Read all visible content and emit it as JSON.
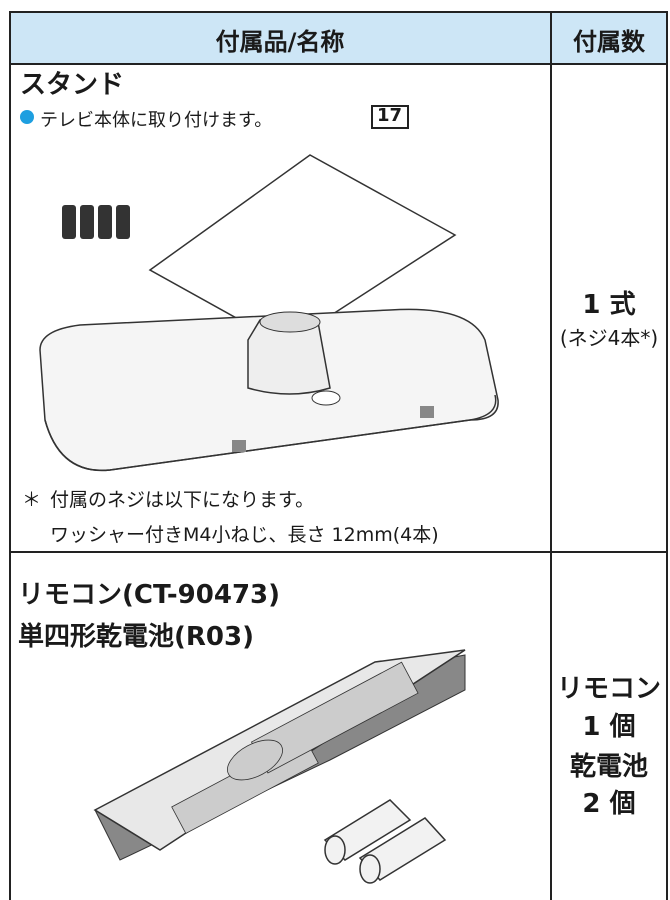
{
  "table": {
    "header": [
      "付属品/名称",
      "付属数"
    ],
    "rows": [
      {
        "name": [
          "スタンド"
        ],
        "note": "テレビ本体に取り付けます。",
        "page_ref": "17",
        "footnote_mark": "＊",
        "footnote": [
          "付属のネジは以下になります。",
          "ワッシャー付きM4小ねじ、長さ 12mm(4本)"
        ],
        "count": [
          "1 式",
          "(ネジ4本*)"
        ]
      },
      {
        "name": [
          "リモコン(CT-90473)",
          "単四形乾電池(R03)"
        ],
        "count": [
          "リモコン",
          "1 個",
          "乾電池",
          "2 個"
        ]
      }
    ]
  }
}
